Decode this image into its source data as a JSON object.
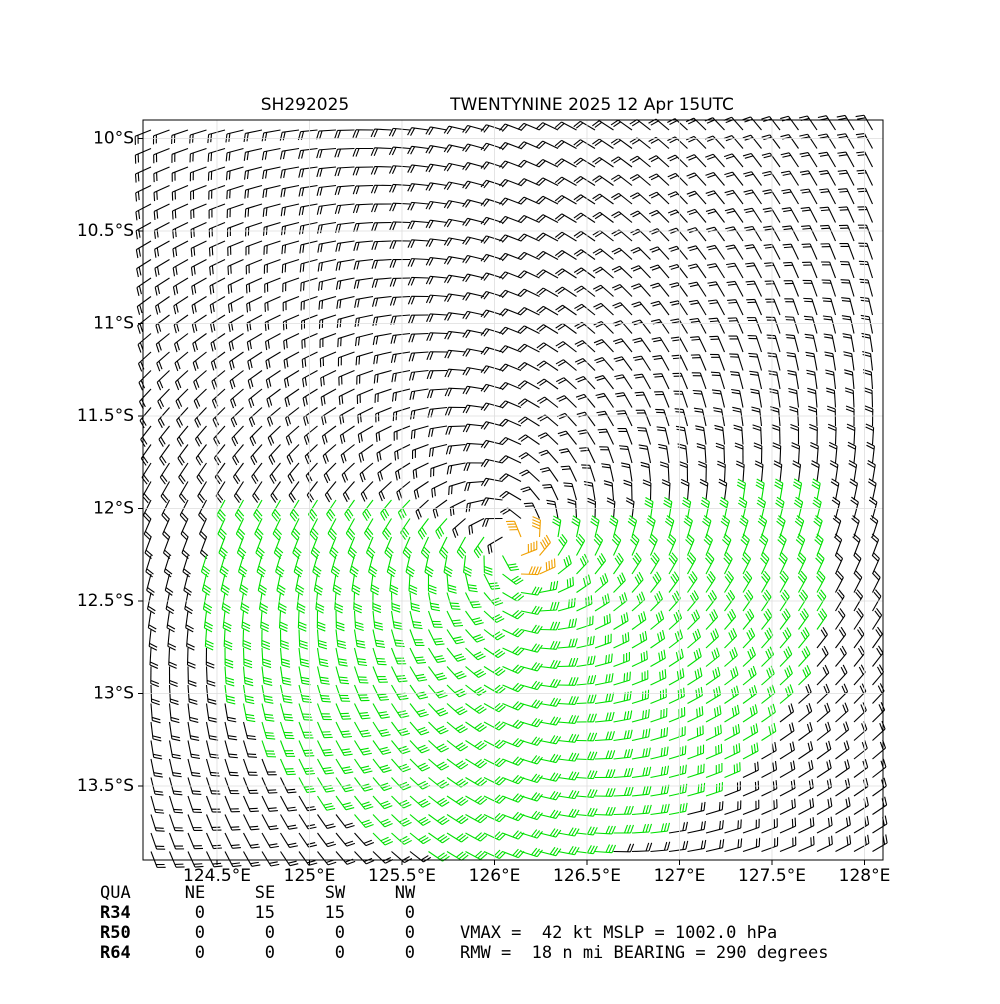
{
  "chart_data": {
    "type": "wind-field",
    "title": "SH292025",
    "subtitle": "TWENTYNINE 2025 12 Apr 15UTC",
    "xlim": [
      124.1,
      128.1
    ],
    "ylim": [
      -13.9,
      -9.9
    ],
    "xticks": [
      {
        "value": 124.5,
        "label": "124.5°E"
      },
      {
        "value": 125,
        "label": "125°E"
      },
      {
        "value": 125.5,
        "label": "125.5°E"
      },
      {
        "value": 126,
        "label": "126°E"
      },
      {
        "value": 126.5,
        "label": "126.5°E"
      },
      {
        "value": 127,
        "label": "127°E"
      },
      {
        "value": 127.5,
        "label": "127.5°E"
      },
      {
        "value": 128,
        "label": "128°E"
      }
    ],
    "yticks": [
      {
        "value": -10,
        "label": "10°S"
      },
      {
        "value": -10.5,
        "label": "10.5°S"
      },
      {
        "value": -11,
        "label": "11°S"
      },
      {
        "value": -11.5,
        "label": "11.5°S"
      },
      {
        "value": -12,
        "label": "12°S"
      },
      {
        "value": -12.5,
        "label": "12.5°S"
      },
      {
        "value": -13,
        "label": "13°S"
      },
      {
        "value": -13.5,
        "label": "13.5°S"
      }
    ],
    "grid": true
  },
  "table": {
    "header": [
      "QUA",
      "NE",
      "SE",
      "SW",
      "NW"
    ],
    "rows": [
      [
        "R34",
        "0",
        "15",
        "15",
        "0"
      ],
      [
        "R50",
        "0",
        "0",
        "0",
        "0"
      ],
      [
        "R64",
        "0",
        "0",
        "0",
        "0"
      ]
    ]
  },
  "annotations": [
    "VMAX =  42 kt MSLP = 1002.0 hPa",
    "RMW =  18 n mi BEARING = 290 degrees"
  ]
}
